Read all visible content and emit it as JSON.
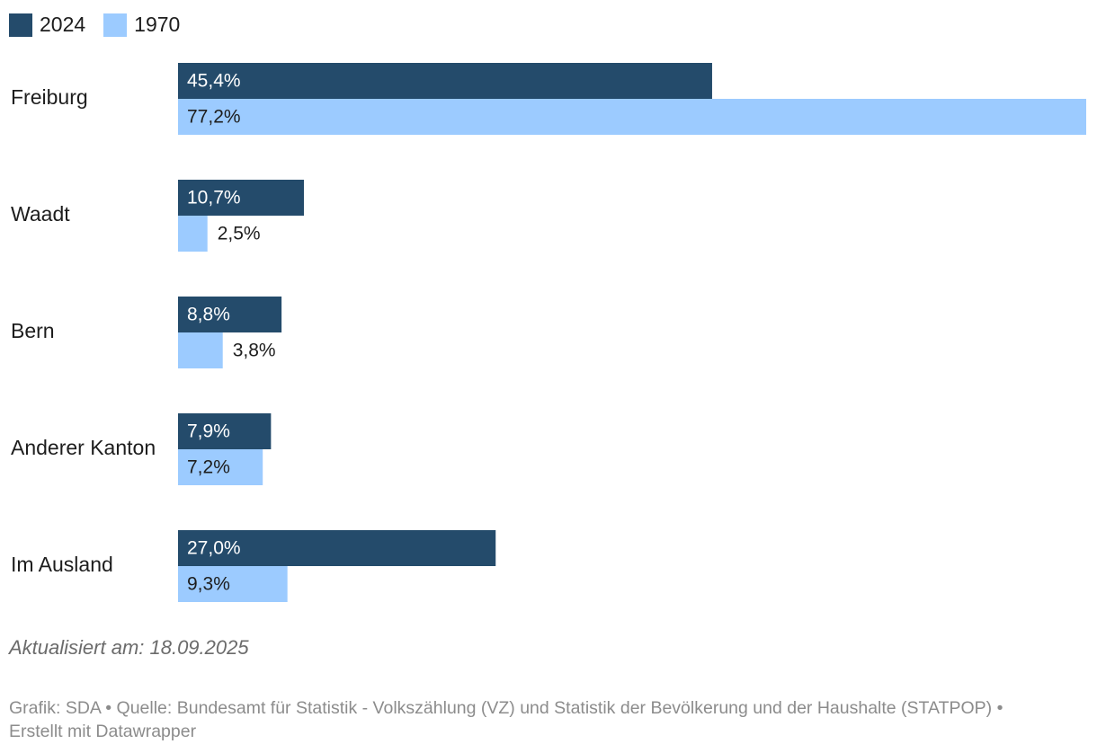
{
  "legend": [
    {
      "label": "2024",
      "color": "#244b6b"
    },
    {
      "label": "1970",
      "color": "#9ccbff"
    }
  ],
  "chart_data": {
    "type": "bar",
    "orientation": "horizontal",
    "categories": [
      "Freiburg",
      "Waadt",
      "Bern",
      "Anderer Kanton",
      "Im Ausland"
    ],
    "series": [
      {
        "name": "2024",
        "color": "#244b6b",
        "values": [
          45.4,
          10.7,
          8.8,
          7.9,
          27.0
        ],
        "labels": [
          "45,4%",
          "10,7%",
          "8,8%",
          "7,9%",
          "27,0%"
        ]
      },
      {
        "name": "1970",
        "color": "#9ccbff",
        "values": [
          77.2,
          2.5,
          3.8,
          7.2,
          9.3
        ],
        "labels": [
          "77,2%",
          "2,5%",
          "3,8%",
          "7,2%",
          "9,3%"
        ]
      }
    ],
    "xlim": [
      0,
      77.2
    ],
    "unit": "%",
    "grid": false,
    "legend_position": "top-left"
  },
  "notes": "Aktualisiert am: 18.09.2025",
  "footer": "Grafik: SDA • Quelle: Bundesamt für Statistik - Volkszählung (VZ) und Statistik der Bevölkerung und der Haushalte (STATPOP) • Erstellt mit Datawrapper"
}
